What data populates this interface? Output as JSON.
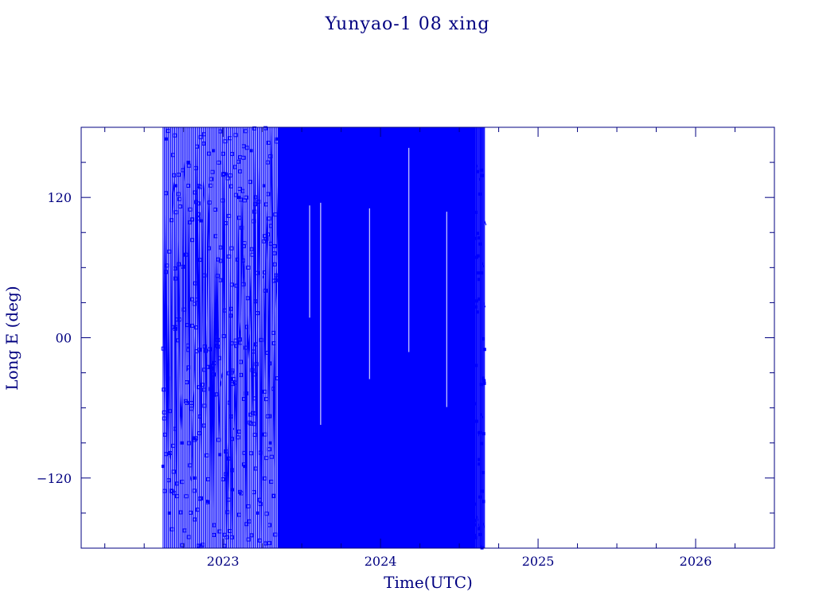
{
  "chart_data": {
    "type": "line",
    "title": "Yunyao-1 08 xing",
    "xlabel": "Time(UTC)",
    "ylabel": "Long E (deg)",
    "xlim": [
      2022.1,
      2026.5
    ],
    "ylim": [
      -180,
      180
    ],
    "xticks": [
      {
        "value": 2023,
        "label": "2023"
      },
      {
        "value": 2024,
        "label": "2024"
      },
      {
        "value": 2025,
        "label": "2025"
      },
      {
        "value": 2026,
        "label": "2026"
      }
    ],
    "yticks": [
      {
        "value": 120,
        "label": "120"
      },
      {
        "value": 0,
        "label": "00"
      },
      {
        "value": -120,
        "label": "−120"
      }
    ],
    "x_minor_step": 0.25,
    "y_minor_step": 30,
    "grid": false,
    "markers": "small squares",
    "color": "#0000ff",
    "series": [
      {
        "x_range": [
          2022.62,
          2024.66
        ],
        "sparse_until": 2023.35,
        "dense_from": 2023.35,
        "dense_until": 2024.6,
        "samples": [
          {
            "x": 2022.62,
            "y": -110
          },
          {
            "x": 2022.64,
            "y": 170
          },
          {
            "x": 2022.66,
            "y": -150
          },
          {
            "x": 2022.7,
            "y": 130
          },
          {
            "x": 2022.74,
            "y": -90
          },
          {
            "x": 2022.78,
            "y": 150
          },
          {
            "x": 2022.82,
            "y": -120
          },
          {
            "x": 2022.86,
            "y": 100
          },
          {
            "x": 2022.9,
            "y": -140
          },
          {
            "x": 2022.94,
            "y": 160
          },
          {
            "x": 2022.98,
            "y": -100
          },
          {
            "x": 2023.02,
            "y": 140
          },
          {
            "x": 2023.06,
            "y": -130
          },
          {
            "x": 2023.1,
            "y": 120
          },
          {
            "x": 2023.14,
            "y": -110
          },
          {
            "x": 2023.18,
            "y": 160
          },
          {
            "x": 2023.22,
            "y": -150
          },
          {
            "x": 2023.26,
            "y": 130
          },
          {
            "x": 2023.3,
            "y": -90
          },
          {
            "x": 2023.34,
            "y": 170
          },
          {
            "x": 2024.58,
            "y": 150
          },
          {
            "x": 2024.6,
            "y": -160
          },
          {
            "x": 2024.62,
            "y": 70
          },
          {
            "x": 2024.64,
            "y": -40
          },
          {
            "x": 2024.66,
            "y": -10
          }
        ]
      }
    ]
  }
}
